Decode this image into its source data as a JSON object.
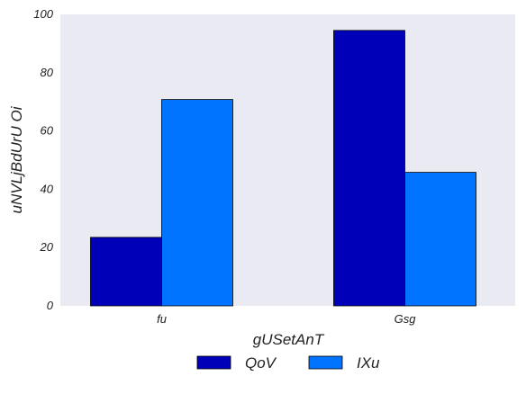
{
  "chart_data": {
    "type": "bar",
    "categories": [
      "fu",
      "Gsg"
    ],
    "series": [
      {
        "name": "QoV",
        "values": [
          23.5,
          94.5
        ],
        "color": "#0000b8"
      },
      {
        "name": "IXu",
        "values": [
          70.8,
          45.8
        ],
        "color": "#0073ff"
      }
    ],
    "xlabel": "gUSetAnT",
    "ylabel": "uNVLjBdUrU Oi",
    "ylim": [
      0,
      100
    ],
    "yticks": [
      0,
      20,
      40,
      60,
      80,
      100
    ],
    "grid": false,
    "legend": "bottom-center",
    "plot_background": "#eaeaf2"
  }
}
